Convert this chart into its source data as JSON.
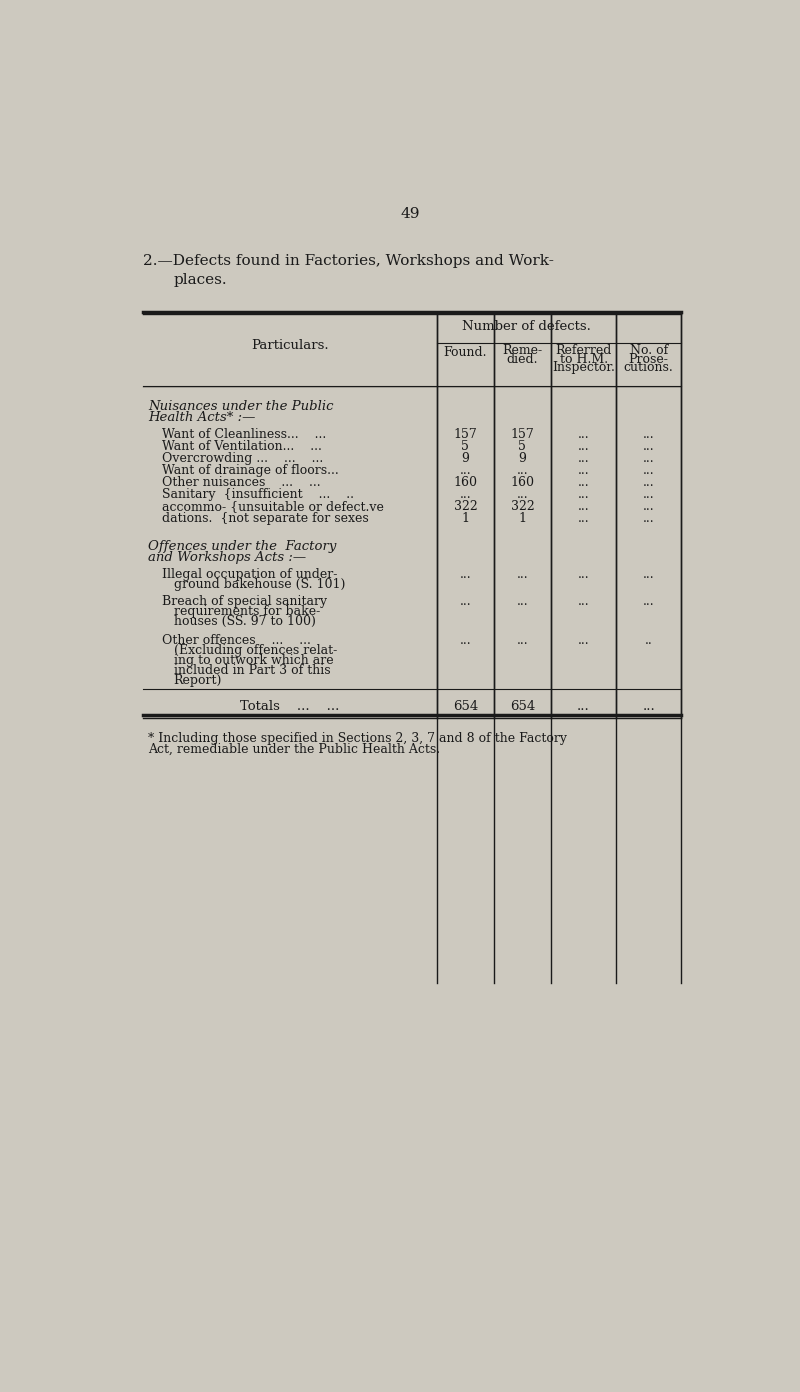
{
  "page_number": "49",
  "title_line1": "2.—Defects found in Factories, Workshops and Work-",
  "title_line2": "places.",
  "bg_color": "#cdc9bf",
  "text_color": "#1a1a1a",
  "table_bg": "#cdc9bf",
  "section1_header_line1": "Nuisances under the Public",
  "section1_header_line2": "Health Acts* :—",
  "rows_section1": [
    {
      "label": "Want of Cleanliness...    ...",
      "found": "157",
      "reme": "157",
      "referred": "...",
      "prose": "..."
    },
    {
      "label": "Want of Ventilation...    ...",
      "found": "5",
      "reme": "5",
      "referred": "...",
      "prose": "..."
    },
    {
      "label": "Overcrowding ...    ...    ...",
      "found": "9",
      "reme": "9",
      "referred": "...",
      "prose": "..."
    },
    {
      "label": "Want of drainage of floors...",
      "found": "...",
      "reme": "...",
      "referred": "...",
      "prose": "..."
    },
    {
      "label": "Other nuisances    ...    ...",
      "found": "160",
      "reme": "160",
      "referred": "...",
      "prose": "..."
    },
    {
      "label": "Sanitary  {insufficient    ...    ..",
      "found": "...",
      "reme": "...",
      "referred": "...",
      "prose": "..."
    },
    {
      "label": "accommo- {unsuitable or defect.ve",
      "found": "322",
      "reme": "322",
      "referred": "...",
      "prose": "..."
    },
    {
      "label": "dations.  {not separate for sexes",
      "found": "1",
      "reme": "1",
      "referred": "...",
      "prose": "..."
    }
  ],
  "section2_header_line1": "Offences under the  Factory",
  "section2_header_line2": "and Workshops Acts :—",
  "rows_section2_1": [
    "Illegal occupation of under-",
    "ground bakehouse (S. 101)"
  ],
  "rows_section2_2": [
    "Breach of special sanitary",
    "requirements for bake-",
    "houses (SS. 97 to 100)"
  ],
  "rows_section2_3": [
    "Other offences    ...    ...",
    "(Excluding offences relat-",
    "ing to outwork which are",
    "included in Part 3 of this",
    "Report)"
  ],
  "totals_label": "Totals    ...    ...",
  "totals_found": "654",
  "totals_reme": "654",
  "totals_referred": "...",
  "totals_prose": "...",
  "footnote_line1": "* Including those specified in Sections 2, 3, 7 and 8 of the Factory",
  "footnote_line2": "Act, remediable under the Public Health Acts."
}
